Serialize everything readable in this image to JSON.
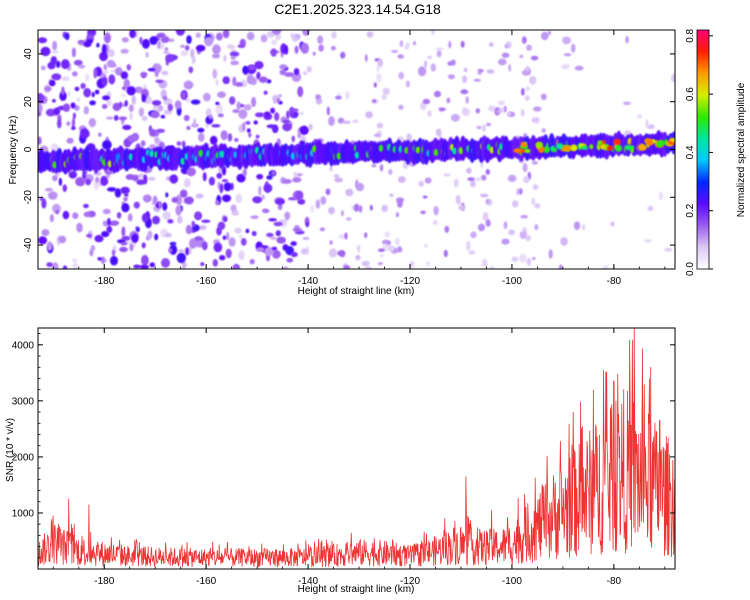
{
  "title": "C2E1.2025.323.14.54.G18",
  "chart_data": [
    {
      "type": "heatmap",
      "title": "C2E1.2025.323.14.54.G18",
      "xlabel": "Height of straight line (km)",
      "ylabel": "Frequency (Hz)",
      "xlim": [
        -193,
        -68
      ],
      "ylim": [
        -50,
        50
      ],
      "x_ticks": [
        "-180",
        "-160",
        "-140",
        "-120",
        "-100",
        "-80"
      ],
      "y_ticks": [
        "-40",
        "-20",
        "0",
        "20",
        "40"
      ],
      "colorbar": {
        "label": "Normalized spectral amplitude",
        "range": [
          0,
          0.82
        ],
        "ticks": [
          "0.0",
          "0.2",
          "0.4",
          "0.6",
          "0.8"
        ],
        "colors": [
          "#ffffff",
          "#dcc8f5",
          "#9b5cf0",
          "#5a0aff",
          "#0028ff",
          "#00c8ff",
          "#00e6a0",
          "#30e800",
          "#d4ee00",
          "#ff9c00",
          "#ff2000",
          "#ff0078"
        ]
      },
      "features": {
        "band": {
          "start_x": -193,
          "end_x": -68,
          "center_start_hz": -5,
          "center_end_hz": 2.5,
          "halfwidth_hz": 3.5
        },
        "scatter_strong_range_x": [
          -193,
          -140
        ],
        "scatter_weak_range_x": [
          -140,
          -95
        ]
      }
    },
    {
      "type": "line",
      "xlabel": "Height of straight line (km)",
      "ylabel": "SNR (10 * v/v)",
      "xlim": [
        -193,
        -68
      ],
      "ylim": [
        0,
        4300
      ],
      "x_ticks": [
        "-180",
        "-160",
        "-140",
        "-120",
        "-100",
        "-80"
      ],
      "y_ticks": [
        "1000",
        "2000",
        "3000",
        "4000"
      ],
      "series": [
        {
          "name": "SNR",
          "color": "#ee3333",
          "x": [
            -193,
            -190,
            -188,
            -185,
            -180,
            -175,
            -170,
            -165,
            -160,
            -155,
            -150,
            -145,
            -140,
            -135,
            -130,
            -125,
            -120,
            -117,
            -114,
            -111,
            -108,
            -105,
            -102,
            -100,
            -97,
            -94,
            -91,
            -88,
            -85,
            -82,
            -80,
            -78,
            -76,
            -74,
            -72,
            -70,
            -68
          ],
          "values": [
            350,
            600,
            520,
            420,
            350,
            300,
            280,
            270,
            260,
            260,
            260,
            260,
            270,
            310,
            380,
            360,
            300,
            360,
            450,
            560,
            520,
            500,
            520,
            600,
            800,
            1050,
            1300,
            1500,
            1750,
            2000,
            2100,
            2300,
            2200,
            2050,
            1900,
            1700,
            1650
          ],
          "peaks": [
            {
              "x": -187,
              "value": 1250
            },
            {
              "x": -183,
              "value": 1150
            },
            {
              "x": -109,
              "value": 1650
            },
            {
              "x": -104,
              "value": 1050
            },
            {
              "x": -88,
              "value": 2800
            },
            {
              "x": -84,
              "value": 3200
            },
            {
              "x": -82,
              "value": 3550
            },
            {
              "x": -80,
              "value": 3350
            },
            {
              "x": -76,
              "value": 4300
            },
            {
              "x": -73,
              "value": 3400
            },
            {
              "x": -71,
              "value": 2650
            }
          ]
        }
      ]
    }
  ]
}
